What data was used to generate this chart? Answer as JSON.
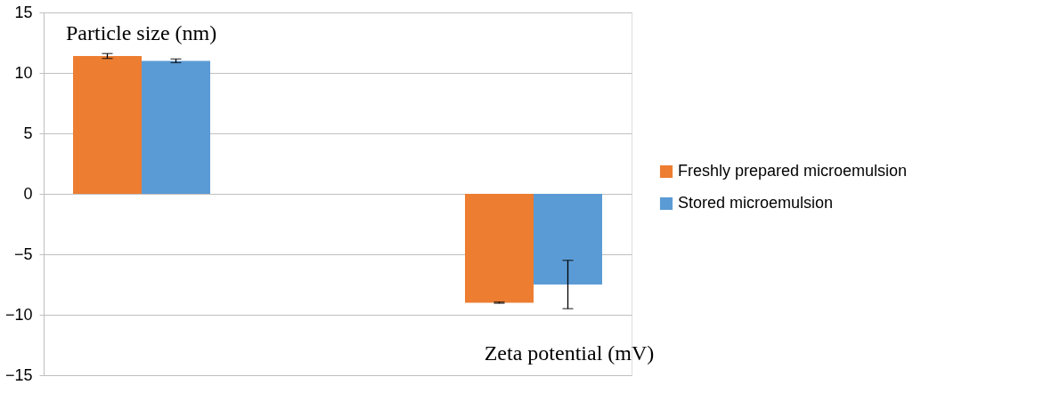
{
  "chart_data": {
    "type": "bar",
    "categories": [
      null,
      null,
      null
    ],
    "series": [
      {
        "name": "Freshly prepared microemulsion",
        "color": "#ed7d31",
        "values": [
          11.4,
          0,
          -9.0
        ],
        "errors": [
          0.2,
          null,
          0.05
        ]
      },
      {
        "name": "Stored microemulsion",
        "color": "#5b9bd5",
        "values": [
          11.0,
          0,
          -7.5
        ],
        "errors": [
          0.15,
          null,
          2
        ]
      }
    ],
    "ylim": [
      -15,
      15
    ],
    "yticks": [
      -15,
      -10,
      -5,
      0,
      5,
      10,
      15
    ],
    "grid": "y",
    "legend": "right",
    "annotations": [
      "Particle size (nm)",
      "Zeta potential (mV)"
    ]
  }
}
